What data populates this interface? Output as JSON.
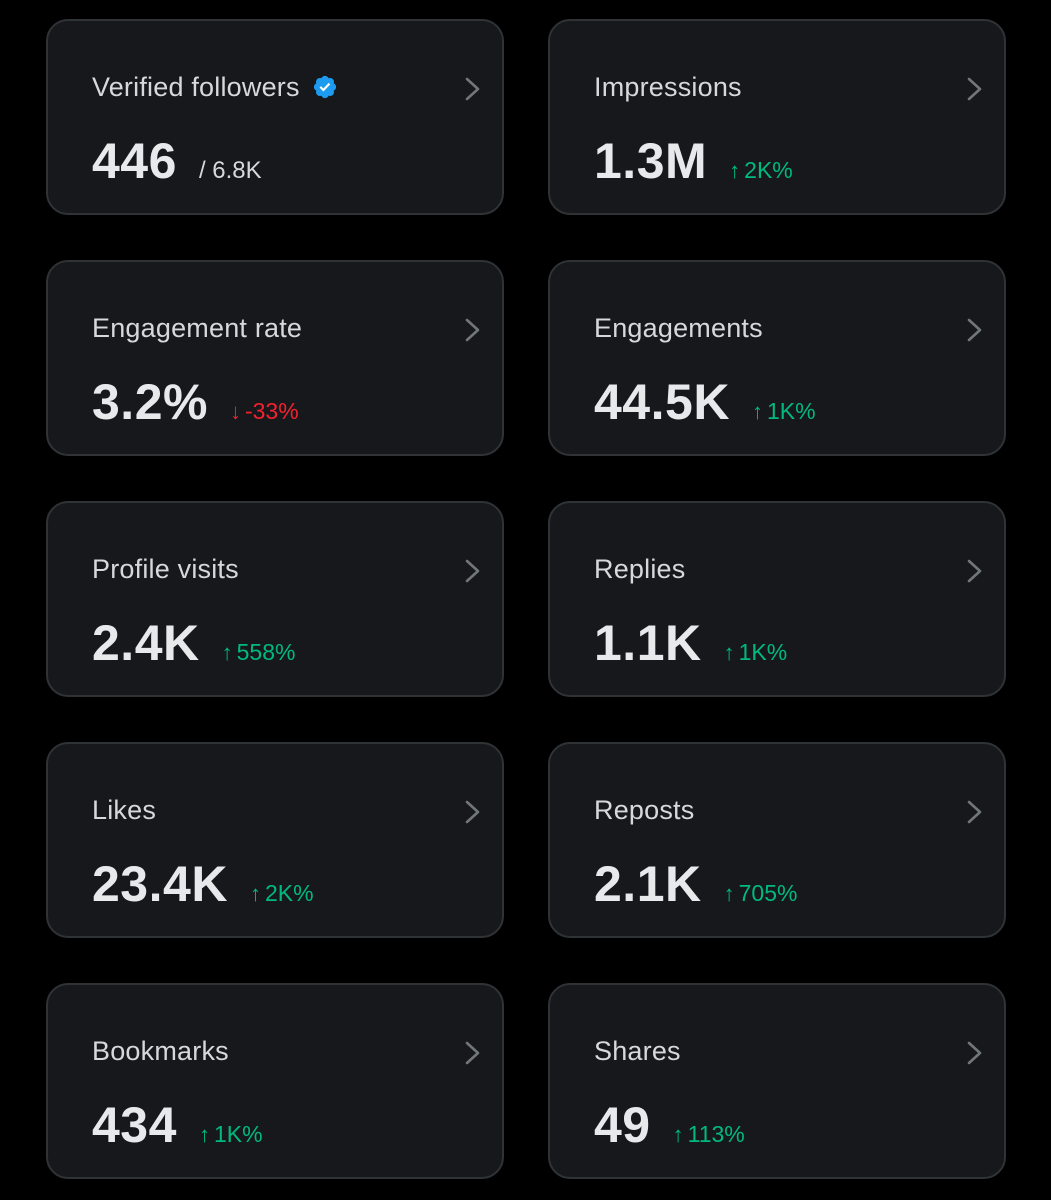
{
  "colors": {
    "background": "#000000",
    "card": "#16181c",
    "card_border": "#2f3336",
    "positive": "#00ba7c",
    "negative": "#f4212e",
    "verified_badge": "#1d9bf0"
  },
  "cards": [
    {
      "label": "Verified followers",
      "value": "446",
      "secondary": "/ 6.8K",
      "verified_icon": "verified-badge-icon"
    },
    {
      "label": "Impressions",
      "value": "1.3M",
      "change": {
        "direction": "up",
        "arrow": "↑",
        "text": "2K%"
      }
    },
    {
      "label": "Engagement rate",
      "value": "3.2%",
      "change": {
        "direction": "down",
        "arrow": "↓",
        "text": "-33%"
      }
    },
    {
      "label": "Engagements",
      "value": "44.5K",
      "change": {
        "direction": "up",
        "arrow": "↑",
        "text": "1K%"
      }
    },
    {
      "label": "Profile visits",
      "value": "2.4K",
      "change": {
        "direction": "up",
        "arrow": "↑",
        "text": "558%"
      }
    },
    {
      "label": "Replies",
      "value": "1.1K",
      "change": {
        "direction": "up",
        "arrow": "↑",
        "text": "1K%"
      }
    },
    {
      "label": "Likes",
      "value": "23.4K",
      "change": {
        "direction": "up",
        "arrow": "↑",
        "text": "2K%"
      }
    },
    {
      "label": "Reposts",
      "value": "2.1K",
      "change": {
        "direction": "up",
        "arrow": "↑",
        "text": "705%"
      }
    },
    {
      "label": "Bookmarks",
      "value": "434",
      "change": {
        "direction": "up",
        "arrow": "↑",
        "text": "1K%"
      }
    },
    {
      "label": "Shares",
      "value": "49",
      "change": {
        "direction": "up",
        "arrow": "↑",
        "text": "113%"
      }
    }
  ]
}
